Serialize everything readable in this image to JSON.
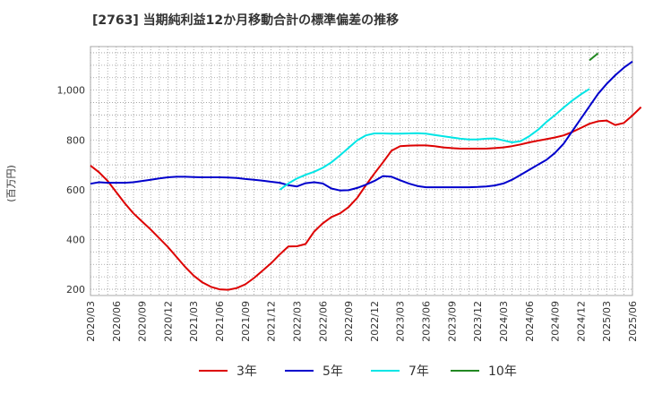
{
  "chart_data": {
    "type": "line",
    "title": "[2763]  当期純利益12か月移動合計の標準偏差の推移",
    "ylabel": "(百万円)",
    "xlabel": "",
    "ylim": [
      175,
      1175
    ],
    "y_ticks": [
      200,
      400,
      600,
      800,
      1000
    ],
    "y_tick_labels": [
      "200",
      "400",
      "600",
      "800",
      "1,000"
    ],
    "x_ticks": [
      "2020/03",
      "2020/06",
      "2020/09",
      "2020/12",
      "2021/03",
      "2021/06",
      "2021/09",
      "2021/12",
      "2022/03",
      "2022/06",
      "2022/09",
      "2022/12",
      "2023/03",
      "2023/06",
      "2023/09",
      "2023/12",
      "2024/03",
      "2024/06",
      "2024/09",
      "2024/12",
      "2025/03",
      "2025/06"
    ],
    "grid": true,
    "legend_position": "bottom",
    "start": "2020/03",
    "series": [
      {
        "name": "3年",
        "color": "#dd0000",
        "values": [
          697,
          670,
          635,
          590,
          545,
          505,
          472,
          440,
          405,
          370,
          330,
          290,
          255,
          228,
          210,
          200,
          198,
          205,
          220,
          245,
          275,
          305,
          340,
          372,
          373,
          382,
          432,
          465,
          490,
          505,
          530,
          567,
          617,
          665,
          710,
          757,
          775,
          777,
          778,
          778,
          775,
          770,
          767,
          765,
          765,
          765,
          765,
          767,
          770,
          775,
          782,
          790,
          797,
          803,
          810,
          818,
          832,
          848,
          865,
          875,
          878,
          860,
          868,
          898,
          932
        ]
      },
      {
        "name": "5年",
        "color": "#0000cc",
        "values": [
          624,
          630,
          628,
          628,
          628,
          630,
          635,
          640,
          645,
          650,
          652,
          652,
          651,
          650,
          650,
          650,
          649,
          647,
          643,
          640,
          636,
          632,
          628,
          618,
          613,
          626,
          630,
          625,
          605,
          597,
          598,
          607,
          620,
          635,
          655,
          652,
          638,
          625,
          615,
          610,
          610,
          610,
          610,
          610,
          610,
          611,
          613,
          617,
          625,
          640,
          660,
          680,
          700,
          720,
          748,
          785,
          835,
          885,
          935,
          985,
          1025,
          1060,
          1090,
          1115
        ]
      },
      {
        "name": "7年",
        "color": "#00e5e5",
        "start": "2022/01",
        "values": [
          600,
          625,
          645,
          660,
          672,
          688,
          710,
          738,
          768,
          798,
          818,
          826,
          826,
          825,
          825,
          826,
          827,
          825,
          820,
          815,
          810,
          805,
          802,
          802,
          805,
          806,
          798,
          790,
          795,
          815,
          840,
          872,
          900,
          930,
          958,
          983,
          1005
        ]
      },
      {
        "name": "10年",
        "color": "#228822",
        "start": "2025/01",
        "values": [
          1120,
          1148
        ]
      }
    ]
  }
}
